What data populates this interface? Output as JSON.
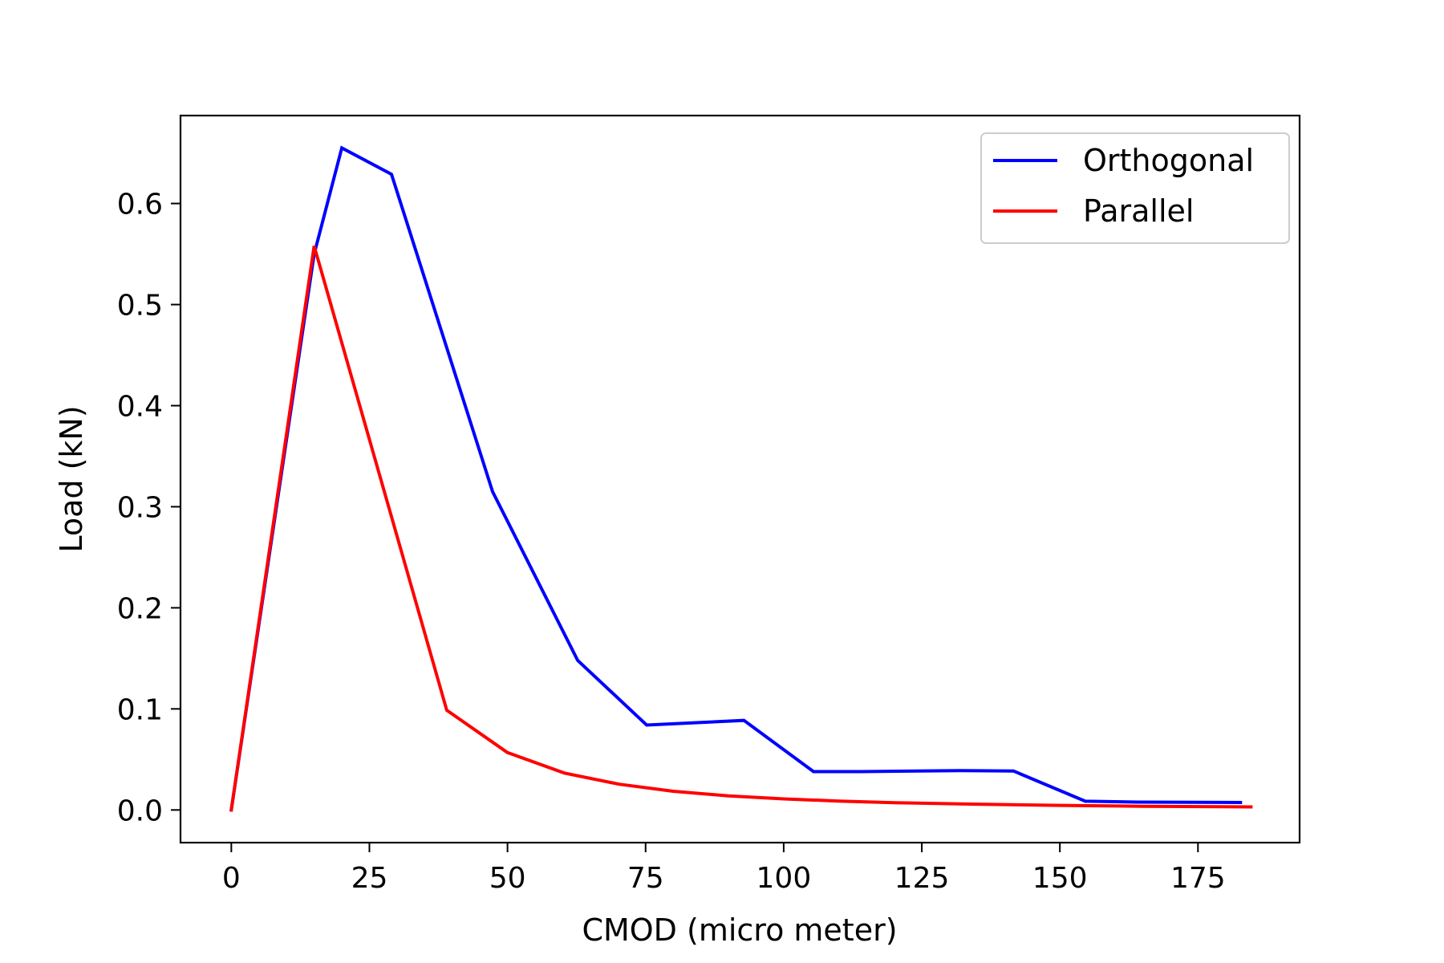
{
  "chart_data": {
    "type": "line",
    "title": "",
    "xlabel": "CMOD (micro meter)",
    "ylabel": "Load (kN)",
    "xlim": [
      -9.2,
      193.4
    ],
    "ylim": [
      -0.0323,
      0.687
    ],
    "grid": false,
    "legend_position": "top-right",
    "xticks": [
      0,
      25,
      50,
      75,
      100,
      125,
      150,
      175
    ],
    "xtick_labels": [
      "0",
      "25",
      "50",
      "75",
      "100",
      "125",
      "150",
      "175"
    ],
    "yticks": [
      0.0,
      0.1,
      0.2,
      0.3,
      0.4,
      0.5,
      0.6
    ],
    "ytick_labels": [
      "0.0",
      "0.1",
      "0.2",
      "0.3",
      "0.4",
      "0.5",
      "0.6"
    ],
    "series": [
      {
        "name": "Orthogonal",
        "color": "#0000ff",
        "x": [
          0,
          15,
          20,
          29,
          47.3,
          62.7,
          75.2,
          92.8,
          105.4,
          114,
          132,
          141.6,
          154.6,
          164,
          182.7
        ],
        "y": [
          0,
          0.55,
          0.655,
          0.629,
          0.315,
          0.148,
          0.084,
          0.0886,
          0.038,
          0.038,
          0.039,
          0.0386,
          0.0087,
          0.0078,
          0.0074
        ]
      },
      {
        "name": "Parallel",
        "color": "#ff0000",
        "x": [
          0,
          15,
          39,
          50,
          60.3,
          70.2,
          80,
          90,
          100,
          110,
          120,
          135,
          150,
          165,
          184.6
        ],
        "y": [
          0,
          0.558,
          0.0987,
          0.0568,
          0.0365,
          0.0255,
          0.0185,
          0.014,
          0.011,
          0.0088,
          0.0072,
          0.0057,
          0.0045,
          0.0037,
          0.003
        ]
      }
    ]
  }
}
